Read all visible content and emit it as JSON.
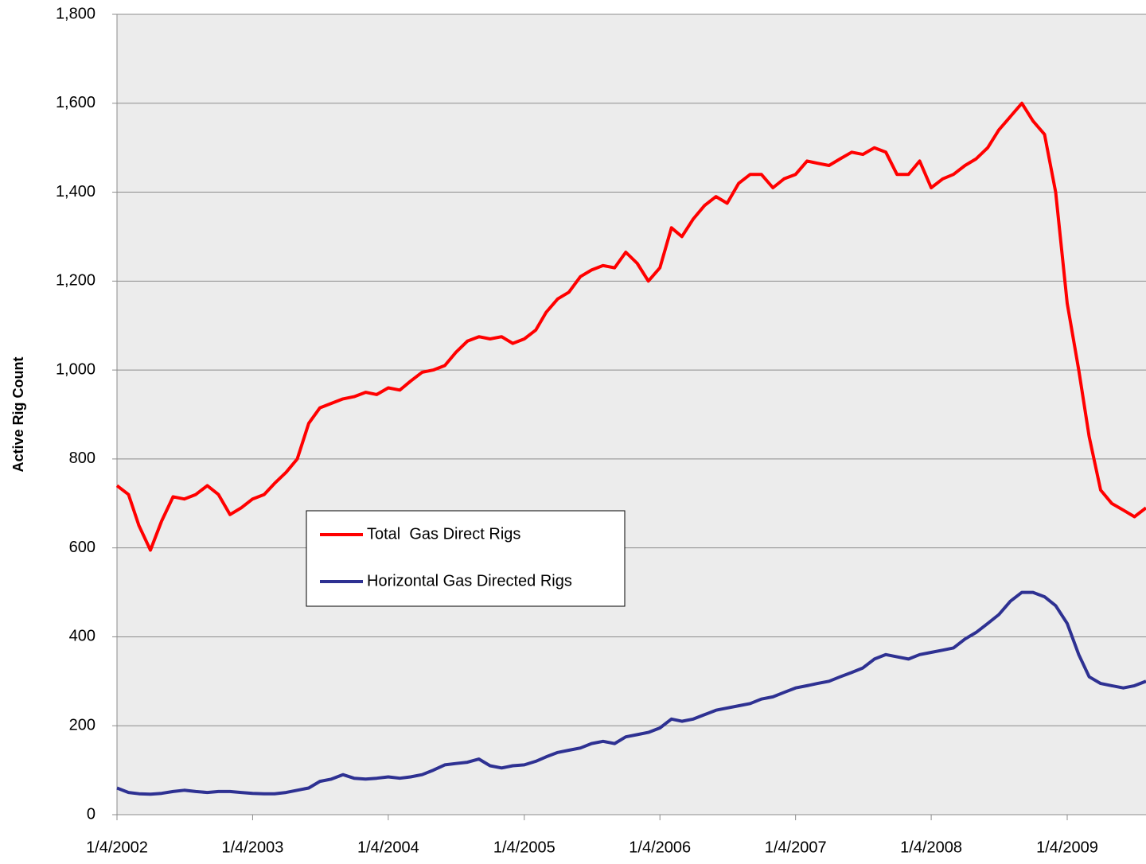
{
  "chart_data": {
    "type": "line",
    "y_label": "Active Rig Count",
    "x": [
      "1/4/2002",
      "2/4/2002",
      "3/4/2002",
      "4/4/2002",
      "5/4/2002",
      "6/4/2002",
      "7/4/2002",
      "8/4/2002",
      "9/4/2002",
      "10/4/2002",
      "11/4/2002",
      "12/4/2002",
      "1/4/2003",
      "2/4/2003",
      "3/4/2003",
      "4/4/2003",
      "5/4/2003",
      "6/4/2003",
      "7/4/2003",
      "8/4/2003",
      "9/4/2003",
      "10/4/2003",
      "11/4/2003",
      "12/4/2003",
      "1/4/2004",
      "2/4/2004",
      "3/4/2004",
      "4/4/2004",
      "5/4/2004",
      "6/4/2004",
      "7/4/2004",
      "8/4/2004",
      "9/4/2004",
      "10/4/2004",
      "11/4/2004",
      "12/4/2004",
      "1/4/2005",
      "2/4/2005",
      "3/4/2005",
      "4/4/2005",
      "5/4/2005",
      "6/4/2005",
      "7/4/2005",
      "8/4/2005",
      "9/4/2005",
      "10/4/2005",
      "11/4/2005",
      "12/4/2005",
      "1/4/2006",
      "2/4/2006",
      "3/4/2006",
      "4/4/2006",
      "5/4/2006",
      "6/4/2006",
      "7/4/2006",
      "8/4/2006",
      "9/4/2006",
      "10/4/2006",
      "11/4/2006",
      "12/4/2006",
      "1/4/2007",
      "2/4/2007",
      "3/4/2007",
      "4/4/2007",
      "5/4/2007",
      "6/4/2007",
      "7/4/2007",
      "8/4/2007",
      "9/4/2007",
      "10/4/2007",
      "11/4/2007",
      "12/4/2007",
      "1/4/2008",
      "2/4/2008",
      "3/4/2008",
      "4/4/2008",
      "5/4/2008",
      "6/4/2008",
      "7/4/2008",
      "8/4/2008",
      "9/4/2008",
      "10/4/2008",
      "11/4/2008",
      "12/4/2008",
      "1/4/2009",
      "2/4/2009",
      "3/4/2009",
      "4/4/2009",
      "5/4/2009",
      "6/4/2009",
      "7/4/2009",
      "8/4/2009"
    ],
    "series": [
      {
        "name": "Total  Gas Direct Rigs",
        "color": "#ff0000",
        "values": [
          740,
          720,
          650,
          595,
          660,
          715,
          710,
          720,
          740,
          720,
          675,
          690,
          710,
          720,
          745,
          770,
          800,
          880,
          915,
          925,
          935,
          940,
          950,
          945,
          960,
          955,
          975,
          995,
          1000,
          1010,
          1040,
          1065,
          1075,
          1070,
          1075,
          1060,
          1070,
          1090,
          1130,
          1160,
          1175,
          1210,
          1225,
          1235,
          1230,
          1265,
          1240,
          1200,
          1230,
          1320,
          1300,
          1340,
          1370,
          1390,
          1375,
          1420,
          1440,
          1440,
          1410,
          1430,
          1440,
          1470,
          1465,
          1460,
          1475,
          1490,
          1485,
          1500,
          1490,
          1440,
          1440,
          1470,
          1410,
          1430,
          1440,
          1460,
          1475,
          1500,
          1540,
          1570,
          1600,
          1560,
          1530,
          1400,
          1150,
          1000,
          850,
          730,
          700,
          685,
          670,
          690
        ]
      },
      {
        "name": "Horizontal Gas Directed Rigs",
        "color": "#2e3192",
        "values": [
          60,
          50,
          47,
          46,
          48,
          52,
          55,
          52,
          50,
          52,
          52,
          50,
          48,
          47,
          47,
          50,
          55,
          60,
          75,
          80,
          90,
          82,
          80,
          82,
          85,
          82,
          85,
          90,
          100,
          112,
          115,
          118,
          125,
          110,
          105,
          110,
          112,
          120,
          130,
          140,
          145,
          150,
          160,
          165,
          160,
          175,
          180,
          185,
          195,
          215,
          210,
          215,
          225,
          235,
          240,
          245,
          250,
          260,
          265,
          275,
          285,
          290,
          295,
          300,
          310,
          320,
          330,
          350,
          360,
          355,
          350,
          360,
          365,
          370,
          375,
          395,
          410,
          430,
          450,
          480,
          500,
          500,
          490,
          470,
          430,
          360,
          310,
          295,
          290,
          285,
          290,
          300
        ]
      }
    ],
    "xlim": [
      "1/4/2002",
      "8/4/2009"
    ],
    "xticks": [
      "1/4/2002",
      "1/4/2003",
      "1/4/2004",
      "1/4/2005",
      "1/4/2006",
      "1/4/2007",
      "1/4/2008",
      "1/4/2009"
    ],
    "ylim": [
      0,
      1800
    ],
    "yticks": [
      0,
      200,
      400,
      600,
      800,
      {
        "value": 1000,
        "label": "1,000"
      },
      {
        "value": 1200,
        "label": "1,200"
      },
      {
        "value": 1400,
        "label": "1,400"
      },
      {
        "value": 1600,
        "label": "1,600"
      },
      {
        "value": 1800,
        "label": "1,800"
      }
    ],
    "grid": true
  }
}
